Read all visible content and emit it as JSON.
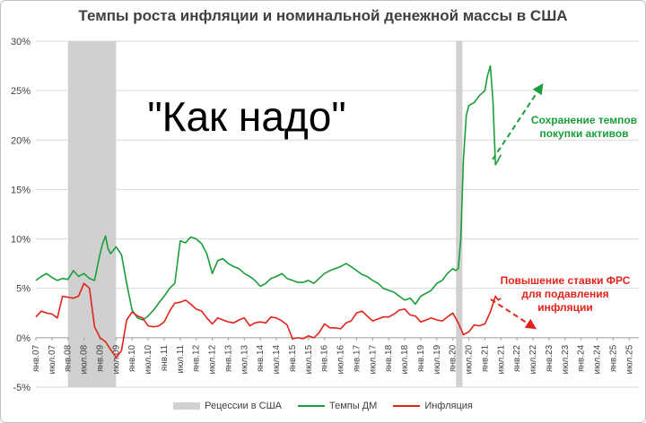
{
  "chart_data": {
    "type": "line",
    "title": "Темпы роста инфляции и номинальной денежной массы в США",
    "big_annotation": "\"Как надо\"",
    "ylim": [
      -5,
      30
    ],
    "y_ticks": [
      "-5%",
      "0%",
      "5%",
      "10%",
      "15%",
      "20%",
      "25%",
      "30%"
    ],
    "y_tick_values": [
      -5,
      0,
      5,
      10,
      15,
      20,
      25,
      30
    ],
    "x_tick_labels": [
      "янв.07",
      "июл.07",
      "янв.08",
      "июл.08",
      "янв.09",
      "июл.09",
      "янв.10",
      "июл.10",
      "янв.11",
      "июл.11",
      "янв.12",
      "июл.12",
      "янв.13",
      "июл.13",
      "янв.14",
      "июл.14",
      "янв.15",
      "июл.15",
      "янв.16",
      "июл.16",
      "янв.17",
      "июл.17",
      "янв.18",
      "июл.18",
      "янв.19",
      "июл.19",
      "янв.20",
      "июл.20",
      "янв.21",
      "июл.21",
      "янв.22",
      "июл.22",
      "янв.23",
      "июл.23",
      "янв.24",
      "июл.24",
      "янв.25",
      "июл.25"
    ],
    "x_tick_values": [
      2007.0,
      2007.5,
      2008.0,
      2008.5,
      2009.0,
      2009.5,
      2010.0,
      2010.5,
      2011.0,
      2011.5,
      2012.0,
      2012.5,
      2013.0,
      2013.5,
      2014.0,
      2014.5,
      2015.0,
      2015.5,
      2016.0,
      2016.5,
      2017.0,
      2017.5,
      2018.0,
      2018.5,
      2019.0,
      2019.5,
      2020.0,
      2020.5,
      2021.0,
      2021.5,
      2022.0,
      2022.5,
      2023.0,
      2023.5,
      2024.0,
      2024.5,
      2025.0,
      2025.5
    ],
    "xlim": [
      2007.0,
      2025.8
    ],
    "grid": true,
    "recessions": [
      {
        "start": 2008.0,
        "end": 2009.5
      },
      {
        "start": 2020.1,
        "end": 2020.3
      }
    ],
    "series": [
      {
        "name": "Темпы ДМ",
        "color": "#1a9e3a",
        "x": [
          2007.0,
          2007.17,
          2007.33,
          2007.5,
          2007.67,
          2007.83,
          2008.0,
          2008.17,
          2008.33,
          2008.5,
          2008.67,
          2008.83,
          2009.0,
          2009.08,
          2009.17,
          2009.25,
          2009.33,
          2009.5,
          2009.67,
          2009.83,
          2010.0,
          2010.17,
          2010.33,
          2010.5,
          2010.67,
          2010.83,
          2011.0,
          2011.17,
          2011.33,
          2011.5,
          2011.67,
          2011.83,
          2012.0,
          2012.17,
          2012.33,
          2012.5,
          2012.67,
          2012.83,
          2013.0,
          2013.17,
          2013.33,
          2013.5,
          2013.67,
          2013.83,
          2014.0,
          2014.17,
          2014.33,
          2014.5,
          2014.67,
          2014.83,
          2015.0,
          2015.17,
          2015.33,
          2015.5,
          2015.67,
          2015.83,
          2016.0,
          2016.17,
          2016.33,
          2016.5,
          2016.67,
          2016.83,
          2017.0,
          2017.17,
          2017.33,
          2017.5,
          2017.67,
          2017.83,
          2018.0,
          2018.17,
          2018.33,
          2018.5,
          2018.67,
          2018.83,
          2019.0,
          2019.17,
          2019.33,
          2019.5,
          2019.67,
          2019.83,
          2020.0,
          2020.08,
          2020.17,
          2020.25,
          2020.33,
          2020.42,
          2020.5,
          2020.67,
          2020.83,
          2021.0,
          2021.08,
          2021.17,
          2021.25,
          2021.33,
          2021.42,
          2021.5
        ],
        "values": [
          5.8,
          6.2,
          6.5,
          6.1,
          5.8,
          6.0,
          5.9,
          6.8,
          6.2,
          6.5,
          6.0,
          5.8,
          8.5,
          9.5,
          10.3,
          9.0,
          8.5,
          9.2,
          8.4,
          5.5,
          2.8,
          2.0,
          1.8,
          2.2,
          2.8,
          3.5,
          4.2,
          5.0,
          5.5,
          9.8,
          9.6,
          10.2,
          10.0,
          9.5,
          8.5,
          6.5,
          7.8,
          8.0,
          7.5,
          7.2,
          7.0,
          6.5,
          6.2,
          5.8,
          5.2,
          5.5,
          6.0,
          6.2,
          6.5,
          6.0,
          5.8,
          5.6,
          5.6,
          5.8,
          5.5,
          6.0,
          6.5,
          6.8,
          7.0,
          7.2,
          7.5,
          7.2,
          6.8,
          6.4,
          6.2,
          5.8,
          5.5,
          5.0,
          4.8,
          4.6,
          4.2,
          3.8,
          4.0,
          3.4,
          4.2,
          4.5,
          4.8,
          5.5,
          5.8,
          6.5,
          7.0,
          6.8,
          7.0,
          10.0,
          18.0,
          22.5,
          23.5,
          23.8,
          24.5,
          25.0,
          26.5,
          27.5,
          24.0,
          17.5,
          18.0,
          18.5
        ]
      },
      {
        "name": "Инфляция",
        "color": "#e2231a",
        "x": [
          2007.0,
          2007.17,
          2007.33,
          2007.5,
          2007.67,
          2007.83,
          2008.0,
          2008.17,
          2008.33,
          2008.5,
          2008.67,
          2008.83,
          2009.0,
          2009.17,
          2009.33,
          2009.5,
          2009.67,
          2009.83,
          2010.0,
          2010.17,
          2010.33,
          2010.5,
          2010.67,
          2010.83,
          2011.0,
          2011.17,
          2011.33,
          2011.5,
          2011.67,
          2011.83,
          2012.0,
          2012.17,
          2012.33,
          2012.5,
          2012.67,
          2012.83,
          2013.0,
          2013.17,
          2013.33,
          2013.5,
          2013.67,
          2013.83,
          2014.0,
          2014.17,
          2014.33,
          2014.5,
          2014.67,
          2014.83,
          2015.0,
          2015.17,
          2015.33,
          2015.5,
          2015.67,
          2015.83,
          2016.0,
          2016.17,
          2016.33,
          2016.5,
          2016.67,
          2016.83,
          2017.0,
          2017.17,
          2017.33,
          2017.5,
          2017.67,
          2017.83,
          2018.0,
          2018.17,
          2018.33,
          2018.5,
          2018.67,
          2018.83,
          2019.0,
          2019.17,
          2019.33,
          2019.5,
          2019.67,
          2019.83,
          2020.0,
          2020.17,
          2020.33,
          2020.5,
          2020.67,
          2020.83,
          2021.0,
          2021.17,
          2021.33,
          2021.42,
          2021.5
        ],
        "values": [
          2.1,
          2.7,
          2.5,
          2.4,
          2.0,
          4.2,
          4.1,
          4.0,
          4.2,
          5.5,
          5.0,
          1.1,
          0.0,
          -0.4,
          -1.2,
          -2.0,
          -1.3,
          1.8,
          2.6,
          2.2,
          2.0,
          1.2,
          1.1,
          1.2,
          1.6,
          2.7,
          3.5,
          3.6,
          3.8,
          3.4,
          2.9,
          2.7,
          2.0,
          1.4,
          2.0,
          1.8,
          1.6,
          1.5,
          1.8,
          2.0,
          1.2,
          1.5,
          1.6,
          1.5,
          2.1,
          2.0,
          1.7,
          1.3,
          -0.1,
          0.0,
          -0.1,
          0.2,
          0.0,
          0.5,
          1.4,
          1.0,
          1.0,
          0.9,
          1.5,
          1.7,
          2.5,
          2.7,
          2.2,
          1.7,
          1.9,
          2.1,
          2.1,
          2.4,
          2.8,
          2.9,
          2.3,
          2.2,
          1.6,
          1.8,
          2.0,
          1.8,
          1.7,
          2.1,
          2.5,
          1.5,
          0.3,
          0.6,
          1.3,
          1.2,
          1.4,
          2.6,
          4.2,
          3.8,
          4.0
        ]
      }
    ],
    "annotations": [
      {
        "lines": [
          "Сохранение темпов",
          "покупки активов"
        ],
        "color": "#1a9e3a"
      },
      {
        "lines": [
          "Повышение ставки ФРС",
          "для подавления",
          "инфляции"
        ],
        "color": "#e2231a"
      }
    ],
    "legend": {
      "placement": "bottom",
      "items": [
        {
          "label": "Рецессии в США",
          "kind": "box",
          "color": "#d0d0d0"
        },
        {
          "label": "Темпы ДМ",
          "kind": "line",
          "color": "#1a9e3a"
        },
        {
          "label": "Инфляция",
          "kind": "line",
          "color": "#e2231a"
        }
      ]
    }
  }
}
